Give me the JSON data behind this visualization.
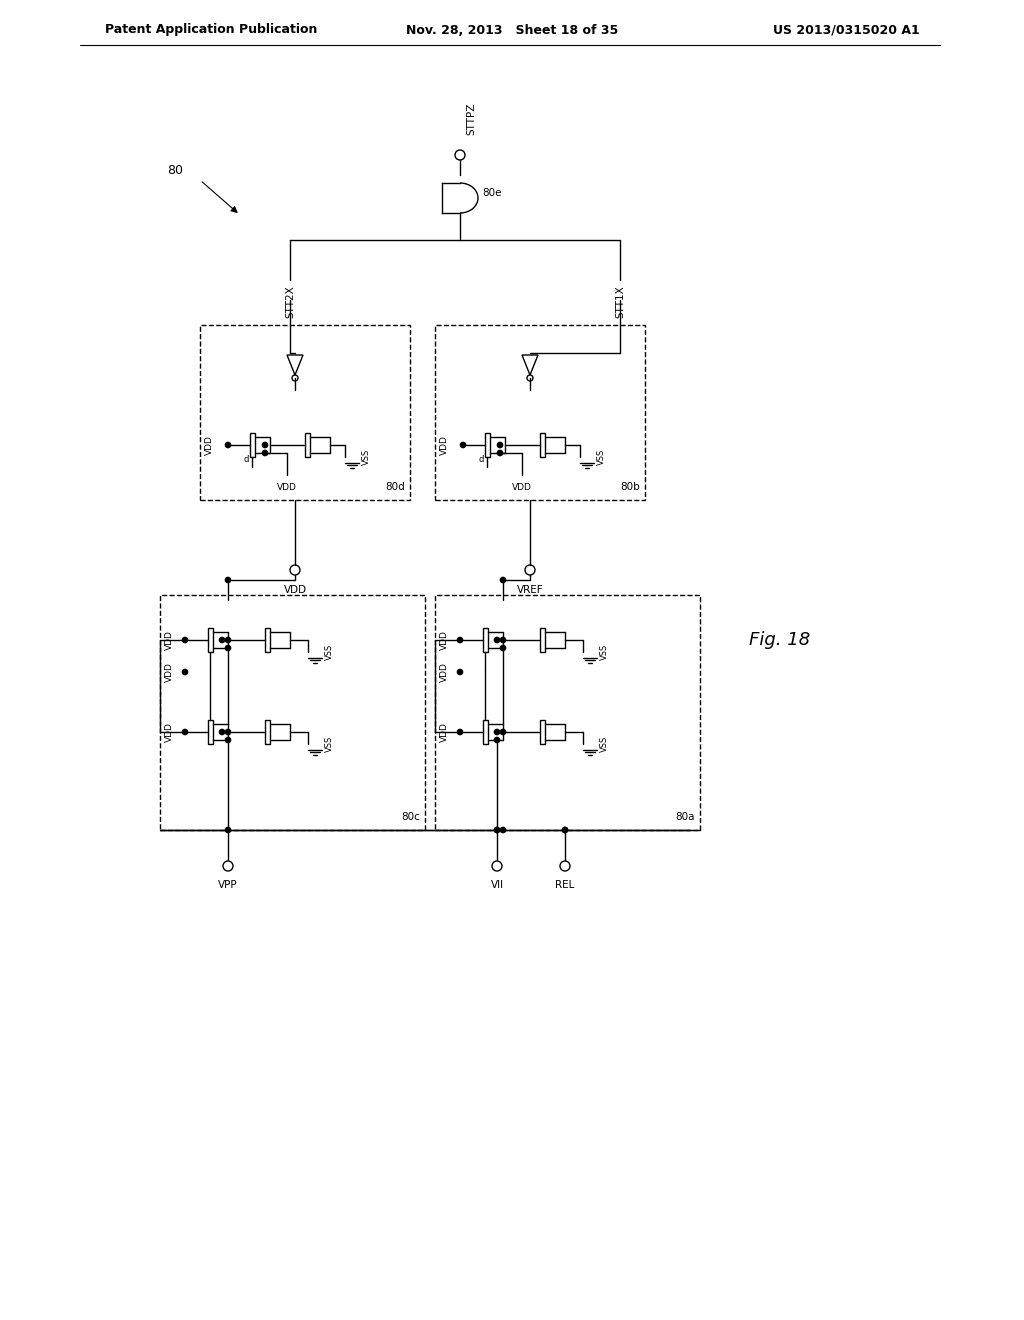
{
  "bg_color": "#ffffff",
  "header_left": "Patent Application Publication",
  "header_mid": "Nov. 28, 2013   Sheet 18 of 35",
  "header_right": "US 2013/0315020 A1",
  "fig_label": "Fig. 18",
  "circuit_label": "80",
  "block_labels": [
    "80a",
    "80b",
    "80c",
    "80d",
    "80e"
  ],
  "line_color": "#000000",
  "text_color": "#000000",
  "header_fontsize": 9,
  "label_fontsize": 8.5,
  "small_fontsize": 7.5
}
